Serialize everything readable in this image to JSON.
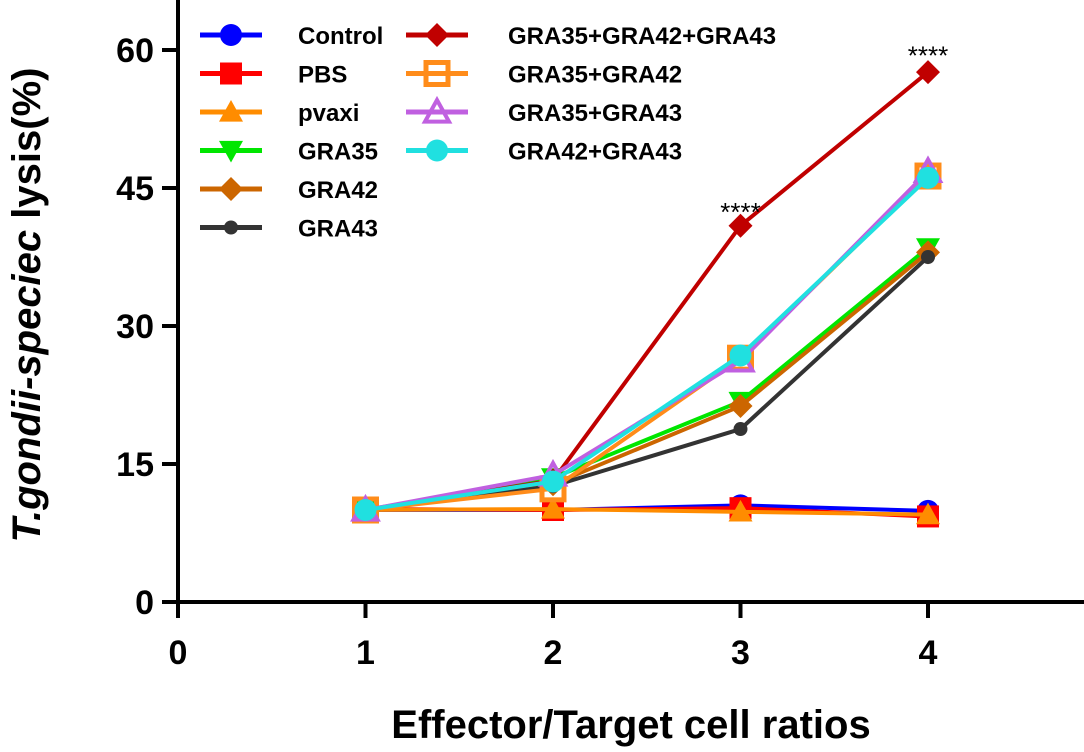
{
  "chart_data": {
    "type": "line",
    "ylabel_italic": "T.gondii-speciec",
    "ylabel_rest": " lysis(%)",
    "xlabel": "Effector/Target cell ratios",
    "x": [
      1,
      2,
      3,
      4
    ],
    "xlim": [
      0,
      4.8
    ],
    "ylim": [
      0,
      65
    ],
    "xticks": [
      "0",
      "1",
      "2",
      "3",
      "4"
    ],
    "yticks": [
      "0",
      "15",
      "30",
      "45",
      "60"
    ],
    "series": [
      {
        "name": "Control",
        "values": [
          10.0,
          10.0,
          10.5,
          9.9
        ],
        "color": "#0000ff",
        "marker": "circle"
      },
      {
        "name": "PBS",
        "values": [
          10.1,
          10.0,
          10.2,
          9.3
        ],
        "color": "#ff0000",
        "marker": "square"
      },
      {
        "name": "pvaxi",
        "values": [
          10.0,
          10.1,
          9.8,
          9.5
        ],
        "color": "#ff8c00",
        "marker": "triangle-up"
      },
      {
        "name": "GRA35",
        "values": [
          10.0,
          13.5,
          21.8,
          38.5
        ],
        "color": "#00e600",
        "marker": "triangle-down"
      },
      {
        "name": "GRA42",
        "values": [
          10.0,
          12.8,
          21.3,
          38.0
        ],
        "color": "#cc6600",
        "marker": "diamond"
      },
      {
        "name": "GRA43",
        "values": [
          10.0,
          12.6,
          18.8,
          37.5
        ],
        "color": "#333333",
        "marker": "small-circle"
      },
      {
        "name": "GRA35+GRA42+GRA43",
        "values": [
          10.0,
          13.2,
          40.9,
          57.6
        ],
        "color": "#c00000",
        "marker": "diamond"
      },
      {
        "name": "GRA35+GRA42",
        "values": [
          10.0,
          12.3,
          26.5,
          46.3
        ],
        "color": "#ff8c1a",
        "marker": "open-square"
      },
      {
        "name": "GRA35+GRA43",
        "values": [
          10.0,
          13.8,
          26.2,
          46.8
        ],
        "color": "#c060e0",
        "marker": "open-triangle"
      },
      {
        "name": "GRA42+GRA43",
        "values": [
          10.0,
          13.1,
          26.8,
          46.1
        ],
        "color": "#20e0e0",
        "marker": "circle"
      }
    ],
    "annotations": [
      {
        "text": "****",
        "x": 3,
        "y": 41
      },
      {
        "text": "****",
        "x": 4,
        "y": 58
      }
    ],
    "legend_position": "top-left, two columns"
  }
}
